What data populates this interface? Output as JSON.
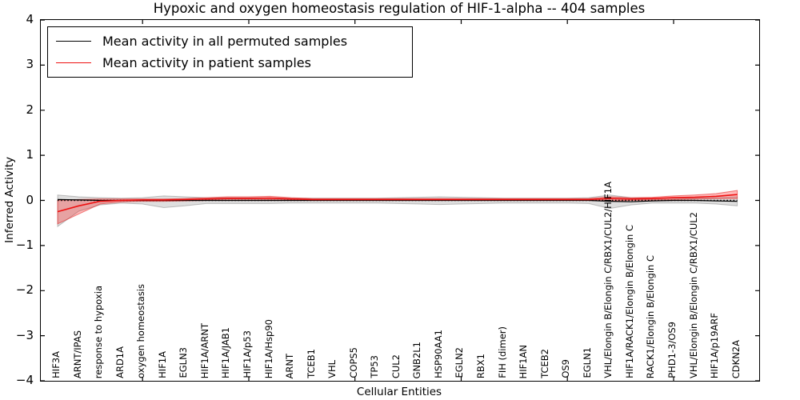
{
  "chart_data": {
    "type": "line",
    "title": "Hypoxic and oxygen homeostasis regulation of HIF-1-alpha -- 404 samples",
    "xlabel": "Cellular Entities",
    "ylabel": "Inferred Activity",
    "ylim": [
      -4,
      4
    ],
    "yticks": [
      4,
      3,
      2,
      1,
      0,
      -1,
      -2,
      -3,
      -4
    ],
    "xtick_indices": [
      4,
      9,
      14,
      19,
      24,
      29
    ],
    "grid": false,
    "zero_line_style": "dotted",
    "legend_position": "upper left",
    "categories": [
      "HIF3A",
      "ARNT/IPAS",
      "response to hypoxia",
      "ARD1A",
      "oxygen homeostasis",
      "HIF1A",
      "EGLN3",
      "HIF1A/ARNT",
      "HIF1A/JAB1",
      "HIF1A/p53",
      "HIF1A/Hsp90",
      "ARNT",
      "TCEB1",
      "VHL",
      "COPS5",
      "TP53",
      "CUL2",
      "GNB2L1",
      "HSP90AA1",
      "EGLN2",
      "RBX1",
      "FIH (dimer)",
      "HIF1AN",
      "TCEB2",
      "OS9",
      "EGLN1",
      "VHL/Elongin B/Elongin C/RBX1/CUL2/HIF1A",
      "HIF1A/RACK1/Elongin B/Elongin C",
      "RACK1/Elongin B/Elongin C",
      "PHD1-3/OS9",
      "VHL/Elongin B/Elongin C/RBX1/CUL2",
      "HIF1A/p19ARF",
      "CDKN2A"
    ],
    "series": [
      {
        "name": "Mean activity in all permuted samples",
        "color": "#000000",
        "band_fill": "rgba(0,0,0,0.13)",
        "band_edge": "rgba(0,0,0,0.22)",
        "values": [
          0.02,
          0.01,
          0,
          0,
          0,
          0,
          0,
          0,
          0,
          0,
          0,
          0,
          0,
          0,
          0,
          0,
          0,
          0,
          0,
          0,
          0,
          0,
          0,
          0,
          0,
          0,
          -0.02,
          -0.03,
          -0.01,
          0,
          0,
          -0.01,
          -0.02
        ],
        "band_upper": [
          0.12,
          0.08,
          0.06,
          0.05,
          0.06,
          0.1,
          0.08,
          0.06,
          0.06,
          0.06,
          0.06,
          0.05,
          0.05,
          0.05,
          0.05,
          0.05,
          0.06,
          0.07,
          0.08,
          0.07,
          0.06,
          0.05,
          0.05,
          0.05,
          0.05,
          0.06,
          0.12,
          0.06,
          0.05,
          0.05,
          0.05,
          0.06,
          0.08
        ],
        "band_lower": [
          -0.58,
          -0.24,
          -0.1,
          -0.06,
          -0.08,
          -0.16,
          -0.12,
          -0.07,
          -0.07,
          -0.07,
          -0.07,
          -0.06,
          -0.06,
          -0.06,
          -0.06,
          -0.06,
          -0.07,
          -0.08,
          -0.09,
          -0.08,
          -0.07,
          -0.06,
          -0.06,
          -0.06,
          -0.06,
          -0.07,
          -0.18,
          -0.1,
          -0.06,
          -0.06,
          -0.06,
          -0.08,
          -0.12
        ]
      },
      {
        "name": "Mean activity in patient samples",
        "color": "#ee1111",
        "band_fill": "rgba(255,0,0,0.27)",
        "band_edge": "rgba(230,30,30,0.55)",
        "values": [
          -0.25,
          -0.12,
          -0.02,
          0,
          0.01,
          0.01,
          0.02,
          0.03,
          0.04,
          0.04,
          0.05,
          0.03,
          0.02,
          0.02,
          0.02,
          0.02,
          0.02,
          0.02,
          0.02,
          0.02,
          0.02,
          0.02,
          0.02,
          0.02,
          0.02,
          0.02,
          0.04,
          0.03,
          0.04,
          0.06,
          0.07,
          0.09,
          0.13
        ],
        "band_upper": [
          0.0,
          0.02,
          0.03,
          0.03,
          0.03,
          0.03,
          0.04,
          0.06,
          0.08,
          0.08,
          0.09,
          0.06,
          0.04,
          0.04,
          0.04,
          0.04,
          0.04,
          0.04,
          0.04,
          0.04,
          0.04,
          0.04,
          0.04,
          0.04,
          0.04,
          0.04,
          0.08,
          0.06,
          0.07,
          0.1,
          0.12,
          0.15,
          0.22
        ],
        "band_lower": [
          -0.52,
          -0.3,
          -0.08,
          -0.03,
          -0.02,
          -0.02,
          -0.01,
          0.0,
          0.0,
          0.0,
          0.01,
          0.0,
          0.0,
          0.0,
          0.0,
          0.0,
          0.0,
          0.0,
          0.0,
          0.0,
          0.0,
          0.0,
          0.0,
          0.0,
          0.0,
          0.0,
          -0.01,
          0.0,
          0.01,
          0.02,
          0.03,
          0.04,
          0.04
        ]
      }
    ]
  }
}
